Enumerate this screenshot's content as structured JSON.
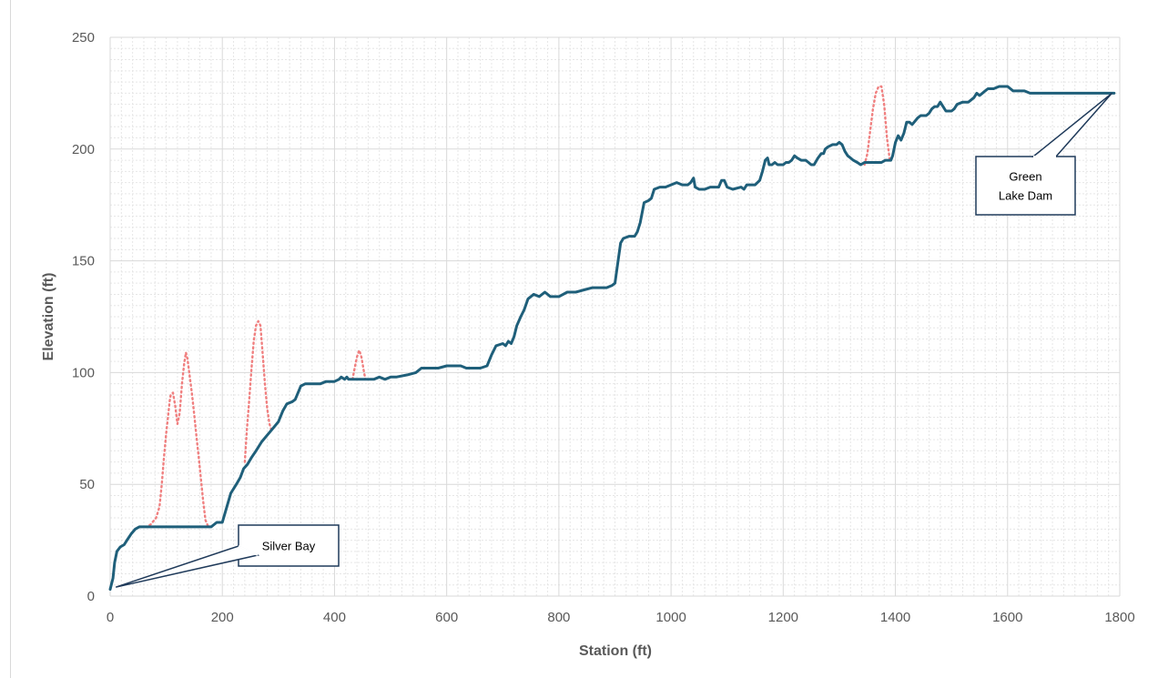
{
  "chart_data": {
    "type": "line",
    "xlabel": "Station (ft)",
    "ylabel": "Elevation (ft)",
    "xlim": [
      0,
      1800
    ],
    "ylim": [
      0,
      250
    ],
    "xticks": [
      "0",
      "200",
      "400",
      "600",
      "800",
      "1000",
      "1200",
      "1400",
      "1600",
      "1800"
    ],
    "yticks": [
      "0",
      "50",
      "100",
      "150",
      "200",
      "250"
    ],
    "grid": {
      "major": true,
      "minor": true
    },
    "series": [
      {
        "style": "solid",
        "color": "#1f5f7a",
        "points": [
          [
            0,
            3
          ],
          [
            5,
            8
          ],
          [
            8,
            15
          ],
          [
            12,
            20
          ],
          [
            18,
            22
          ],
          [
            25,
            23
          ],
          [
            30,
            25
          ],
          [
            38,
            28
          ],
          [
            45,
            30
          ],
          [
            52,
            31
          ],
          [
            60,
            31
          ],
          [
            100,
            31
          ],
          [
            150,
            31
          ],
          [
            170,
            31
          ],
          [
            180,
            31
          ],
          [
            190,
            33
          ],
          [
            200,
            33
          ],
          [
            208,
            40
          ],
          [
            215,
            46
          ],
          [
            225,
            50
          ],
          [
            232,
            53
          ],
          [
            238,
            57
          ],
          [
            245,
            59
          ],
          [
            252,
            62
          ],
          [
            260,
            65
          ],
          [
            270,
            69
          ],
          [
            280,
            72
          ],
          [
            290,
            75
          ],
          [
            300,
            78
          ],
          [
            308,
            83
          ],
          [
            315,
            86
          ],
          [
            325,
            87
          ],
          [
            330,
            88
          ],
          [
            340,
            94
          ],
          [
            348,
            95
          ],
          [
            360,
            95
          ],
          [
            375,
            95
          ],
          [
            385,
            96
          ],
          [
            395,
            96
          ],
          [
            400,
            96
          ],
          [
            408,
            97
          ],
          [
            412,
            98
          ],
          [
            418,
            97
          ],
          [
            422,
            98
          ],
          [
            425,
            97
          ],
          [
            440,
            97
          ],
          [
            450,
            97
          ],
          [
            460,
            97
          ],
          [
            470,
            97
          ],
          [
            480,
            98
          ],
          [
            490,
            97
          ],
          [
            500,
            98
          ],
          [
            510,
            98
          ],
          [
            530,
            99
          ],
          [
            545,
            100
          ],
          [
            555,
            102
          ],
          [
            570,
            102
          ],
          [
            585,
            102
          ],
          [
            600,
            103
          ],
          [
            615,
            103
          ],
          [
            625,
            103
          ],
          [
            635,
            102
          ],
          [
            650,
            102
          ],
          [
            660,
            102
          ],
          [
            672,
            103
          ],
          [
            680,
            108
          ],
          [
            688,
            112
          ],
          [
            700,
            113
          ],
          [
            705,
            112
          ],
          [
            710,
            114
          ],
          [
            715,
            113
          ],
          [
            720,
            116
          ],
          [
            725,
            121
          ],
          [
            732,
            125
          ],
          [
            738,
            128
          ],
          [
            745,
            133
          ],
          [
            755,
            135
          ],
          [
            765,
            134
          ],
          [
            775,
            136
          ],
          [
            785,
            134
          ],
          [
            800,
            134
          ],
          [
            815,
            136
          ],
          [
            830,
            136
          ],
          [
            845,
            137
          ],
          [
            860,
            138
          ],
          [
            875,
            138
          ],
          [
            885,
            138
          ],
          [
            895,
            139
          ],
          [
            900,
            140
          ],
          [
            905,
            149
          ],
          [
            910,
            158
          ],
          [
            915,
            160
          ],
          [
            925,
            161
          ],
          [
            935,
            161
          ],
          [
            940,
            163
          ],
          [
            945,
            167
          ],
          [
            952,
            176
          ],
          [
            960,
            177
          ],
          [
            965,
            178
          ],
          [
            970,
            182
          ],
          [
            980,
            183
          ],
          [
            990,
            183
          ],
          [
            1000,
            184
          ],
          [
            1010,
            185
          ],
          [
            1020,
            184
          ],
          [
            1030,
            184
          ],
          [
            1035,
            185
          ],
          [
            1040,
            187
          ],
          [
            1043,
            183
          ],
          [
            1050,
            182
          ],
          [
            1060,
            182
          ],
          [
            1070,
            183
          ],
          [
            1080,
            183
          ],
          [
            1085,
            183
          ],
          [
            1090,
            186
          ],
          [
            1095,
            186
          ],
          [
            1100,
            183
          ],
          [
            1110,
            182
          ],
          [
            1125,
            183
          ],
          [
            1130,
            182
          ],
          [
            1135,
            184
          ],
          [
            1145,
            184
          ],
          [
            1150,
            184
          ],
          [
            1158,
            186
          ],
          [
            1163,
            190
          ],
          [
            1168,
            195
          ],
          [
            1172,
            196
          ],
          [
            1175,
            193
          ],
          [
            1180,
            193
          ],
          [
            1185,
            194
          ],
          [
            1190,
            193
          ],
          [
            1200,
            193
          ],
          [
            1205,
            194
          ],
          [
            1210,
            194
          ],
          [
            1215,
            195
          ],
          [
            1220,
            197
          ],
          [
            1225,
            196
          ],
          [
            1232,
            195
          ],
          [
            1240,
            195
          ],
          [
            1245,
            194
          ],
          [
            1250,
            193
          ],
          [
            1255,
            193
          ],
          [
            1262,
            196
          ],
          [
            1268,
            198
          ],
          [
            1272,
            198
          ],
          [
            1275,
            200
          ],
          [
            1280,
            201
          ],
          [
            1288,
            202
          ],
          [
            1295,
            202
          ],
          [
            1300,
            203
          ],
          [
            1305,
            202
          ],
          [
            1310,
            199
          ],
          [
            1315,
            197
          ],
          [
            1320,
            196
          ],
          [
            1325,
            195
          ],
          [
            1332,
            194
          ],
          [
            1338,
            193
          ],
          [
            1345,
            194
          ],
          [
            1355,
            194
          ],
          [
            1365,
            194
          ],
          [
            1375,
            194
          ],
          [
            1382,
            195
          ],
          [
            1392,
            195
          ],
          [
            1395,
            197
          ],
          [
            1400,
            203
          ],
          [
            1405,
            206
          ],
          [
            1410,
            204
          ],
          [
            1415,
            207
          ],
          [
            1420,
            212
          ],
          [
            1425,
            212
          ],
          [
            1430,
            211
          ],
          [
            1440,
            214
          ],
          [
            1445,
            215
          ],
          [
            1455,
            215
          ],
          [
            1460,
            216
          ],
          [
            1465,
            218
          ],
          [
            1470,
            219
          ],
          [
            1475,
            219
          ],
          [
            1480,
            221
          ],
          [
            1485,
            219
          ],
          [
            1490,
            217
          ],
          [
            1495,
            217
          ],
          [
            1500,
            217
          ],
          [
            1505,
            218
          ],
          [
            1510,
            220
          ],
          [
            1520,
            221
          ],
          [
            1530,
            221
          ],
          [
            1535,
            222
          ],
          [
            1540,
            223
          ],
          [
            1545,
            225
          ],
          [
            1550,
            224
          ],
          [
            1555,
            225
          ],
          [
            1560,
            226
          ],
          [
            1565,
            227
          ],
          [
            1570,
            227
          ],
          [
            1575,
            227
          ],
          [
            1585,
            228
          ],
          [
            1595,
            228
          ],
          [
            1600,
            228
          ],
          [
            1605,
            227
          ],
          [
            1610,
            226
          ],
          [
            1620,
            226
          ],
          [
            1630,
            226
          ],
          [
            1640,
            225
          ],
          [
            1660,
            225
          ],
          [
            1680,
            225
          ],
          [
            1700,
            225
          ],
          [
            1720,
            225
          ],
          [
            1735,
            225
          ],
          [
            1750,
            225
          ],
          [
            1770,
            225
          ],
          [
            1790,
            225
          ]
        ]
      },
      {
        "style": "dotted",
        "color": "#f08080",
        "segments": [
          [
            [
              55,
              31
            ],
            [
              65,
              31
            ],
            [
              72,
              32
            ],
            [
              82,
              35
            ],
            [
              88,
              40
            ],
            [
              92,
              50
            ],
            [
              96,
              62
            ],
            [
              100,
              73
            ],
            [
              103,
              80
            ],
            [
              106,
              87
            ],
            [
              108,
              90
            ],
            [
              112,
              91
            ],
            [
              116,
              85
            ],
            [
              120,
              77
            ],
            [
              124,
              82
            ],
            [
              128,
              95
            ],
            [
              132,
              104
            ],
            [
              135,
              109
            ],
            [
              138,
              106
            ],
            [
              142,
              98
            ],
            [
              146,
              90
            ],
            [
              150,
              81
            ],
            [
              154,
              71
            ],
            [
              158,
              62
            ],
            [
              162,
              52
            ],
            [
              166,
              42
            ],
            [
              170,
              34
            ],
            [
              175,
              31
            ],
            [
              182,
              31
            ]
          ],
          [
            [
              240,
              60
            ],
            [
              244,
              75
            ],
            [
              248,
              88
            ],
            [
              252,
              102
            ],
            [
              256,
              114
            ],
            [
              260,
              121
            ],
            [
              264,
              123
            ],
            [
              268,
              121
            ],
            [
              272,
              108
            ],
            [
              276,
              95
            ],
            [
              280,
              84
            ],
            [
              284,
              77
            ],
            [
              288,
              74
            ]
          ],
          [
            [
              432,
              97
            ],
            [
              436,
              102
            ],
            [
              440,
              107
            ],
            [
              444,
              110
            ],
            [
              448,
              107
            ],
            [
              452,
              101
            ],
            [
              455,
              97
            ]
          ],
          [
            [
              1345,
              193
            ],
            [
              1350,
              198
            ],
            [
              1355,
              208
            ],
            [
              1360,
              218
            ],
            [
              1365,
              225
            ],
            [
              1370,
              228
            ],
            [
              1375,
              228
            ],
            [
              1380,
              220
            ],
            [
              1385,
              205
            ],
            [
              1390,
              195
            ]
          ]
        ]
      }
    ],
    "annotations": [
      {
        "lines": [
          "Silver Bay"
        ],
        "at": [
          10,
          4
        ]
      },
      {
        "lines": [
          "Green",
          "Lake Dam"
        ],
        "at": [
          1786,
          225
        ]
      }
    ]
  }
}
